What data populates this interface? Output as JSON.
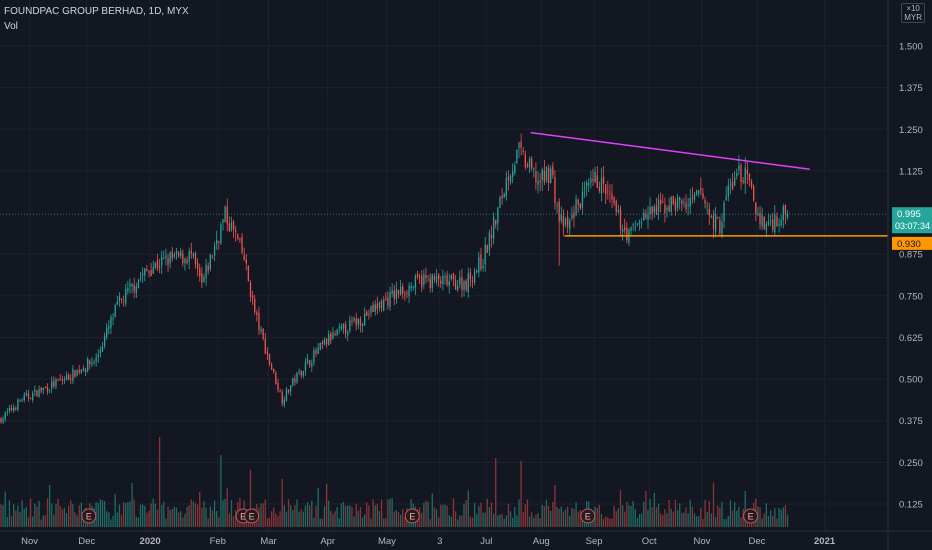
{
  "header": {
    "symbol_line": "FOUNDPAC GROUP BERHAD, 1D, MYX",
    "volume_label": "Vol"
  },
  "currency": {
    "multiplier": "×10",
    "code": "MYR"
  },
  "colors": {
    "background": "#131722",
    "up": "#26a69a",
    "down": "#ef5350",
    "vol_up": "#1f6b63",
    "vol_down": "#8a3436",
    "resistance_line": "#e040fb",
    "support_line": "#ff9800",
    "last_price_bg": "#26a69a",
    "support_label_bg": "#ff9800",
    "axis_text": "#b2b5be",
    "grid": "#1e222d"
  },
  "chart_data": {
    "type": "candlestick",
    "title": "FOUNDPAC GROUP BERHAD, 1D, MYX",
    "y_axis": {
      "ticks": [
        "1.500",
        "1.375",
        "1.250",
        "1.125",
        "0.875",
        "0.750",
        "0.625",
        "0.500",
        "0.375",
        "0.250",
        "0.125"
      ],
      "range": [
        0.05,
        1.62
      ],
      "side": "right"
    },
    "x_axis": {
      "labels": [
        "Nov",
        "Dec",
        "2020",
        "Feb",
        "Mar",
        "Apr",
        "May",
        "3",
        "Jul",
        "Aug",
        "Sep",
        "Oct",
        "Nov",
        "Dec",
        "2021"
      ],
      "bold_labels": [
        "2020",
        "2021"
      ]
    },
    "price_path": [
      {
        "d": 0,
        "p": 0.38
      },
      {
        "d": 10,
        "p": 0.44
      },
      {
        "d": 30,
        "p": 0.5
      },
      {
        "d": 45,
        "p": 0.56
      },
      {
        "d": 55,
        "p": 0.72
      },
      {
        "d": 65,
        "p": 0.8
      },
      {
        "d": 72,
        "p": 0.84
      },
      {
        "d": 80,
        "p": 0.86
      },
      {
        "d": 90,
        "p": 0.87
      },
      {
        "d": 95,
        "p": 0.78
      },
      {
        "d": 102,
        "p": 0.92
      },
      {
        "d": 106,
        "p": 0.99
      },
      {
        "d": 111,
        "p": 0.93
      },
      {
        "d": 115,
        "p": 0.86
      },
      {
        "d": 120,
        "p": 0.7
      },
      {
        "d": 127,
        "p": 0.55
      },
      {
        "d": 133,
        "p": 0.44
      },
      {
        "d": 136,
        "p": 0.47
      },
      {
        "d": 140,
        "p": 0.51
      },
      {
        "d": 145,
        "p": 0.55
      },
      {
        "d": 155,
        "p": 0.62
      },
      {
        "d": 170,
        "p": 0.68
      },
      {
        "d": 185,
        "p": 0.75
      },
      {
        "d": 200,
        "p": 0.8
      },
      {
        "d": 210,
        "p": 0.79
      },
      {
        "d": 220,
        "p": 0.79
      },
      {
        "d": 228,
        "p": 0.86
      },
      {
        "d": 234,
        "p": 0.98
      },
      {
        "d": 240,
        "p": 1.12
      },
      {
        "d": 245,
        "p": 1.18
      },
      {
        "d": 250,
        "p": 1.13
      },
      {
        "d": 255,
        "p": 1.09
      },
      {
        "d": 260,
        "p": 1.13
      },
      {
        "d": 264,
        "p": 0.98
      },
      {
        "d": 268,
        "p": 0.95
      },
      {
        "d": 272,
        "p": 1.02
      },
      {
        "d": 277,
        "p": 1.06
      },
      {
        "d": 282,
        "p": 1.1
      },
      {
        "d": 287,
        "p": 1.05
      },
      {
        "d": 292,
        "p": 0.98
      },
      {
        "d": 297,
        "p": 0.93
      },
      {
        "d": 302,
        "p": 0.98
      },
      {
        "d": 308,
        "p": 1.0
      },
      {
        "d": 314,
        "p": 1.02
      },
      {
        "d": 320,
        "p": 1.03
      },
      {
        "d": 326,
        "p": 1.02
      },
      {
        "d": 331,
        "p": 1.06
      },
      {
        "d": 336,
        "p": 0.98
      },
      {
        "d": 340,
        "p": 0.96
      },
      {
        "d": 344,
        "p": 1.07
      },
      {
        "d": 349,
        "p": 1.12
      },
      {
        "d": 353,
        "p": 1.1
      },
      {
        "d": 357,
        "p": 1.01
      },
      {
        "d": 361,
        "p": 0.96
      },
      {
        "d": 366,
        "p": 0.98
      },
      {
        "d": 372,
        "p": 0.995
      }
    ],
    "volume_spikes": [
      {
        "d": 75,
        "v": 3.0
      },
      {
        "d": 104,
        "v": 2.4
      },
      {
        "d": 118,
        "v": 1.9
      },
      {
        "d": 133,
        "v": 1.6
      },
      {
        "d": 150,
        "v": 1.3
      },
      {
        "d": 234,
        "v": 2.3
      },
      {
        "d": 246,
        "v": 2.2
      },
      {
        "d": 262,
        "v": 1.4
      },
      {
        "d": 305,
        "v": 1.2
      },
      {
        "d": 352,
        "v": 1.2
      }
    ],
    "earnings_markers": [
      42,
      115,
      119,
      195,
      278,
      355
    ],
    "earnings_label": "E",
    "resistance_line": {
      "from": {
        "d": 251,
        "p": 1.24
      },
      "to": {
        "d": 383,
        "p": 1.13
      }
    },
    "support_line": {
      "from": {
        "d": 267,
        "p": 0.93
      },
      "to": {
        "d": 420,
        "p": 0.93
      }
    },
    "last_price": {
      "value": "0.995",
      "countdown": "03:07:34"
    },
    "support_label": "0.930"
  }
}
